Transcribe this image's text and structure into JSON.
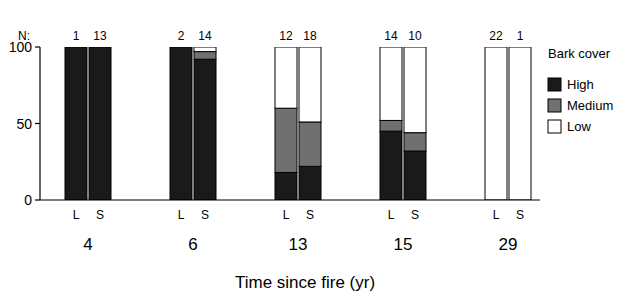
{
  "chart_data": {
    "type": "bar",
    "stacked": true,
    "legend": "right",
    "legend_title": "Bark cover",
    "x_label": "Time since fire (yr)",
    "groups": [
      "4",
      "6",
      "13",
      "15",
      "29"
    ],
    "categories": [
      "L",
      "S",
      "L",
      "S",
      "L",
      "S",
      "L",
      "S",
      "L",
      "S"
    ],
    "n_label": "N:",
    "n": [
      1,
      13,
      2,
      14,
      12,
      18,
      14,
      10,
      22,
      1
    ],
    "ylim": [
      0,
      100
    ],
    "yticks": [
      0,
      50,
      100
    ],
    "series": [
      {
        "name": "High",
        "color": "#1a1a1a",
        "values": [
          100,
          100,
          100,
          92,
          18,
          22,
          45,
          32,
          0,
          0
        ]
      },
      {
        "name": "Medium",
        "color": "#707070",
        "values": [
          0,
          0,
          0,
          5,
          42,
          29,
          7,
          12,
          0,
          0
        ]
      },
      {
        "name": "Low",
        "color": "#ffffff",
        "values": [
          0,
          0,
          0,
          3,
          40,
          49,
          48,
          56,
          100,
          100
        ]
      }
    ]
  }
}
